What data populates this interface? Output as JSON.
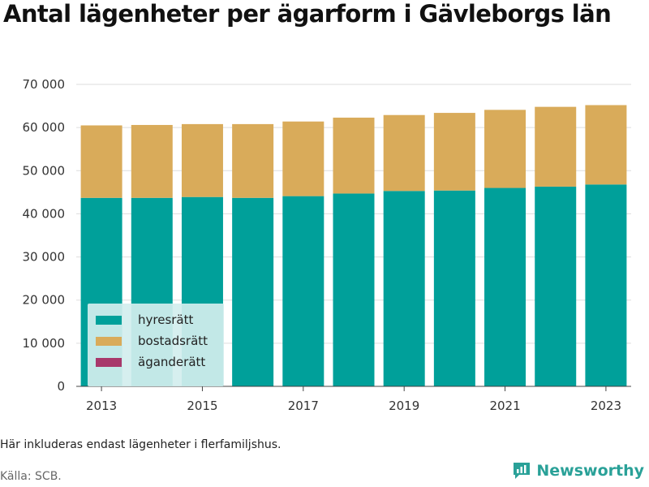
{
  "title": "Antal lägenheter per ägarform i Gävleborgs län",
  "note": "Här inkluderas endast lägenheter i flerfamiljshus.",
  "source": "Källa: SCB.",
  "brand": "Newsworthy",
  "colors": {
    "hyresratt": "#00a09a",
    "bostadsratt": "#d9ab5a",
    "aganderatt": "#a8386b",
    "brand": "#2aa198",
    "grid": "#dddddd"
  },
  "legend": [
    {
      "label": "hyresrätt",
      "color": "#00a09a"
    },
    {
      "label": "bostadsrätt",
      "color": "#d9ab5a"
    },
    {
      "label": "äganderätt",
      "color": "#a8386b"
    }
  ],
  "chart_data": {
    "type": "bar",
    "stacked": true,
    "title": "Antal lägenheter per ägarform i Gävleborgs län",
    "xlabel": "",
    "ylabel": "",
    "ylim": [
      0,
      70000
    ],
    "grid": true,
    "legend_position": "bottom-left",
    "categories": [
      2013,
      2014,
      2015,
      2016,
      2017,
      2018,
      2019,
      2020,
      2021,
      2022,
      2023
    ],
    "x_tick_labels": [
      "2013",
      "2015",
      "2017",
      "2019",
      "2021",
      "2023"
    ],
    "y_tick_labels": [
      "0",
      "10 000",
      "20 000",
      "30 000",
      "40 000",
      "50 000",
      "60 000",
      "70 000"
    ],
    "y_ticks": [
      0,
      10000,
      20000,
      30000,
      40000,
      50000,
      60000,
      70000
    ],
    "series": [
      {
        "name": "hyresrätt",
        "values": [
          43700,
          43700,
          43900,
          43700,
          44100,
          44700,
          45300,
          45400,
          46000,
          46300,
          46800
        ]
      },
      {
        "name": "bostadsrätt",
        "values": [
          16800,
          16900,
          16900,
          17100,
          17300,
          17600,
          17600,
          18000,
          18100,
          18500,
          18400
        ]
      },
      {
        "name": "äganderätt",
        "values": [
          0,
          0,
          0,
          0,
          0,
          0,
          0,
          0,
          0,
          0,
          0
        ]
      }
    ]
  }
}
